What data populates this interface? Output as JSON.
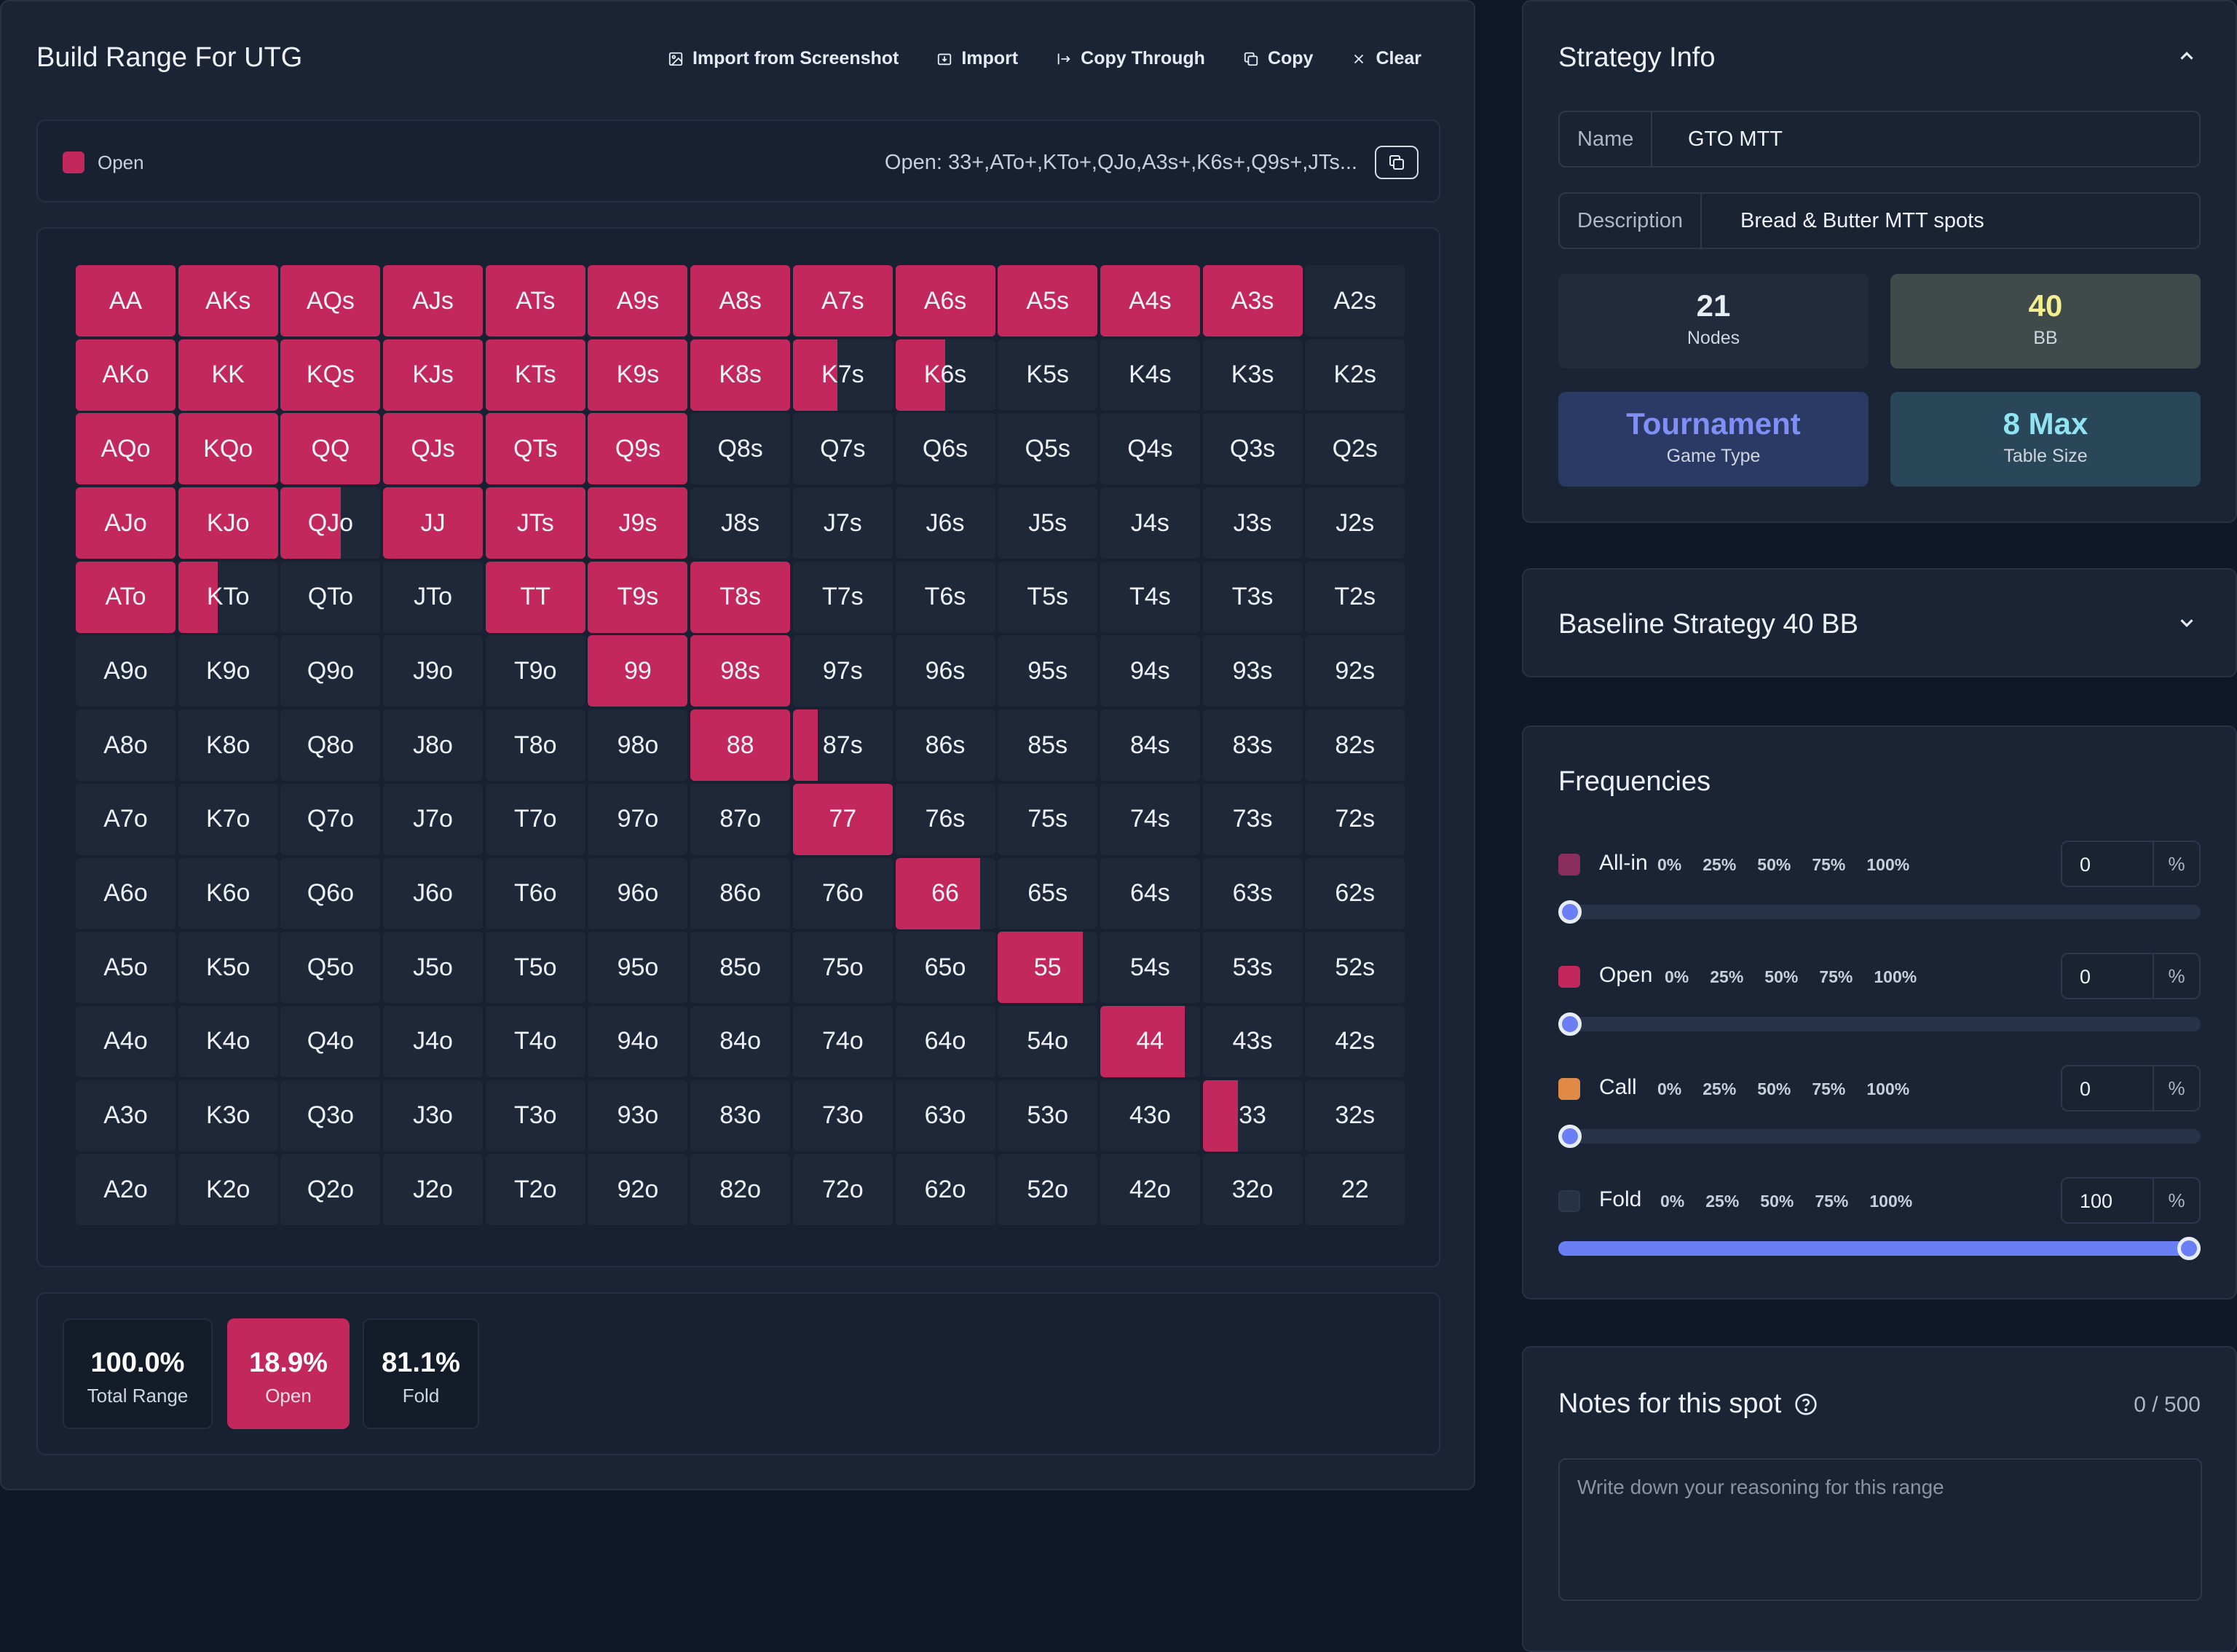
{
  "header": {
    "title": "Build Range For UTG"
  },
  "toolbar": [
    {
      "label": "Import from Screenshot",
      "icon": "image-icon"
    },
    {
      "label": "Import",
      "icon": "import-icon"
    },
    {
      "label": "Copy Through",
      "icon": "copy-through-icon"
    },
    {
      "label": "Copy",
      "icon": "copy-icon"
    },
    {
      "label": "Clear",
      "icon": "close-icon"
    }
  ],
  "legend": {
    "label": "Open",
    "color": "#c3285d",
    "range_text": "Open: 33+,ATo+,KTo+,QJo,A3s+,K6s+,Q9s+,JTs..."
  },
  "grid": {
    "hands": [
      [
        "AA",
        "AKs",
        "AQs",
        "AJs",
        "ATs",
        "A9s",
        "A8s",
        "A7s",
        "A6s",
        "A5s",
        "A4s",
        "A3s",
        "A2s"
      ],
      [
        "AKo",
        "KK",
        "KQs",
        "KJs",
        "KTs",
        "K9s",
        "K8s",
        "K7s",
        "K6s",
        "K5s",
        "K4s",
        "K3s",
        "K2s"
      ],
      [
        "AQo",
        "KQo",
        "QQ",
        "QJs",
        "QTs",
        "Q9s",
        "Q8s",
        "Q7s",
        "Q6s",
        "Q5s",
        "Q4s",
        "Q3s",
        "Q2s"
      ],
      [
        "AJo",
        "KJo",
        "QJo",
        "JJ",
        "JTs",
        "J9s",
        "J8s",
        "J7s",
        "J6s",
        "J5s",
        "J4s",
        "J3s",
        "J2s"
      ],
      [
        "ATo",
        "KTo",
        "QTo",
        "JTo",
        "TT",
        "T9s",
        "T8s",
        "T7s",
        "T6s",
        "T5s",
        "T4s",
        "T3s",
        "T2s"
      ],
      [
        "A9o",
        "K9o",
        "Q9o",
        "J9o",
        "T9o",
        "99",
        "98s",
        "97s",
        "96s",
        "95s",
        "94s",
        "93s",
        "92s"
      ],
      [
        "A8o",
        "K8o",
        "Q8o",
        "J8o",
        "T8o",
        "98o",
        "88",
        "87s",
        "86s",
        "85s",
        "84s",
        "83s",
        "82s"
      ],
      [
        "A7o",
        "K7o",
        "Q7o",
        "J7o",
        "T7o",
        "97o",
        "87o",
        "77",
        "76s",
        "75s",
        "74s",
        "73s",
        "72s"
      ],
      [
        "A6o",
        "K6o",
        "Q6o",
        "J6o",
        "T6o",
        "96o",
        "86o",
        "76o",
        "66",
        "65s",
        "64s",
        "63s",
        "62s"
      ],
      [
        "A5o",
        "K5o",
        "Q5o",
        "J5o",
        "T5o",
        "95o",
        "85o",
        "75o",
        "65o",
        "55",
        "54s",
        "53s",
        "52s"
      ],
      [
        "A4o",
        "K4o",
        "Q4o",
        "J4o",
        "T4o",
        "94o",
        "84o",
        "74o",
        "64o",
        "54o",
        "44",
        "43s",
        "42s"
      ],
      [
        "A3o",
        "K3o",
        "Q3o",
        "J3o",
        "T3o",
        "93o",
        "83o",
        "73o",
        "63o",
        "53o",
        "43o",
        "33",
        "32s"
      ],
      [
        "A2o",
        "K2o",
        "Q2o",
        "J2o",
        "T2o",
        "92o",
        "82o",
        "72o",
        "62o",
        "52o",
        "42o",
        "32o",
        "22"
      ]
    ],
    "open_freq": [
      [
        1,
        1,
        1,
        1,
        1,
        1,
        1,
        1,
        1,
        1,
        1,
        1,
        0
      ],
      [
        1,
        1,
        1,
        1,
        1,
        1,
        1,
        0.45,
        0.5,
        0,
        0,
        0,
        0
      ],
      [
        1,
        1,
        1,
        1,
        1,
        1,
        0,
        0,
        0,
        0,
        0,
        0,
        0
      ],
      [
        1,
        1,
        0.6,
        1,
        1,
        1,
        0,
        0,
        0,
        0,
        0,
        0,
        0
      ],
      [
        1,
        0.4,
        0,
        0,
        1,
        1,
        1,
        0,
        0,
        0,
        0,
        0,
        0
      ],
      [
        0,
        0,
        0,
        0,
        0,
        1,
        1,
        0,
        0,
        0,
        0,
        0,
        0
      ],
      [
        0,
        0,
        0,
        0,
        0,
        0,
        1,
        0.25,
        0,
        0,
        0,
        0,
        0
      ],
      [
        0,
        0,
        0,
        0,
        0,
        0,
        0,
        1,
        0,
        0,
        0,
        0,
        0
      ],
      [
        0,
        0,
        0,
        0,
        0,
        0,
        0,
        0,
        0.85,
        0,
        0,
        0,
        0
      ],
      [
        0,
        0,
        0,
        0,
        0,
        0,
        0,
        0,
        0,
        0.85,
        0,
        0,
        0
      ],
      [
        0,
        0,
        0,
        0,
        0,
        0,
        0,
        0,
        0,
        0,
        0.85,
        0,
        0
      ],
      [
        0,
        0,
        0,
        0,
        0,
        0,
        0,
        0,
        0,
        0,
        0,
        0.35,
        0
      ],
      [
        0,
        0,
        0,
        0,
        0,
        0,
        0,
        0,
        0,
        0,
        0,
        0,
        0
      ]
    ]
  },
  "stats": [
    {
      "value": "100.0%",
      "label": "Total Range"
    },
    {
      "value": "18.9%",
      "label": "Open"
    },
    {
      "value": "81.1%",
      "label": "Fold"
    }
  ],
  "strategy_info": {
    "title": "Strategy Info",
    "name_label": "Name",
    "name_value": "GTO MTT",
    "description_label": "Description",
    "description_value": "Bread & Butter MTT spots",
    "cards": [
      {
        "value": "21",
        "label": "Nodes",
        "value_color": "#e9edf4",
        "bg": "#212b3b"
      },
      {
        "value": "40",
        "label": "BB",
        "value_color": "#f3ef8e",
        "bg": "#404a4b"
      },
      {
        "value": "Tournament",
        "label": "Game Type",
        "value_color": "#7f8ff7",
        "bg": "#2b3a65"
      },
      {
        "value": "8 Max",
        "label": "Table Size",
        "value_color": "#8fe3f2",
        "bg": "#2a4659"
      }
    ]
  },
  "baseline": {
    "title": "Baseline Strategy 40 BB"
  },
  "frequencies": {
    "title": "Frequencies",
    "percent_marks": [
      "0%",
      "25%",
      "50%",
      "75%",
      "100%"
    ],
    "unit": "%",
    "actions": [
      {
        "name": "All-in",
        "color": "#8a2f5d",
        "value": "0",
        "level": 0
      },
      {
        "name": "Open",
        "color": "#c3285d",
        "value": "0",
        "level": 0
      },
      {
        "name": "Call",
        "color": "#e08a48",
        "value": "0",
        "level": 0
      },
      {
        "name": "Fold",
        "color": "#273246",
        "value": "100",
        "level": 100
      }
    ]
  },
  "notes": {
    "title": "Notes for this spot",
    "counter": "0 / 500",
    "placeholder": "Write down your reasoning for this range"
  }
}
